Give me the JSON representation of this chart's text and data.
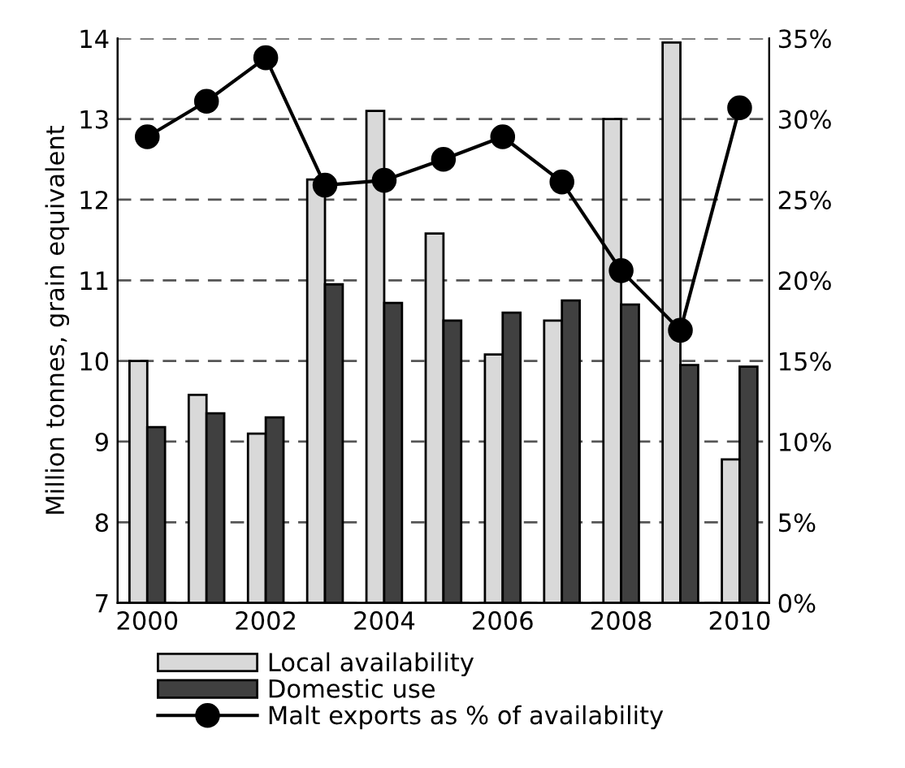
{
  "chart_data": {
    "type": "bar",
    "ylabel": "Million tonnes, grain equivalent",
    "categories": [
      "2000",
      null,
      "2002",
      null,
      "2004",
      null,
      "2006",
      null,
      "2008",
      null,
      "2010"
    ],
    "series": [
      {
        "name": "Local availability",
        "color": "#d9d9d9",
        "values": [
          10.0,
          9.58,
          9.1,
          12.25,
          13.1,
          11.58,
          10.08,
          10.5,
          13.0,
          13.95,
          8.78
        ]
      },
      {
        "name": "Domestic use",
        "color": "#404040",
        "values": [
          9.18,
          9.35,
          9.3,
          10.95,
          10.72,
          10.5,
          10.6,
          10.75,
          10.7,
          9.95,
          9.93
        ]
      },
      {
        "name": "Malt exports as % of availability",
        "type": "line",
        "axis": "y2",
        "color": "#000000",
        "marker": "circle",
        "values": [
          28.9,
          31.1,
          33.8,
          25.9,
          26.2,
          27.5,
          28.9,
          26.1,
          20.6,
          16.9,
          30.7
        ]
      }
    ],
    "ylim": [
      7,
      14
    ],
    "yticks": [
      7,
      8,
      9,
      10,
      11,
      12,
      13,
      14
    ],
    "y2lim": [
      0,
      35
    ],
    "y2ticks": [
      {
        "value": 0,
        "label": "0%"
      },
      {
        "value": 5,
        "label": "5%"
      },
      {
        "value": 10,
        "label": "10%"
      },
      {
        "value": 15,
        "label": "15%"
      },
      {
        "value": 20,
        "label": "20%"
      },
      {
        "value": 25,
        "label": "25%"
      },
      {
        "value": 30,
        "label": "30%"
      },
      {
        "value": 35,
        "label": "35%"
      }
    ],
    "grid": "y",
    "legend": "bottom"
  }
}
